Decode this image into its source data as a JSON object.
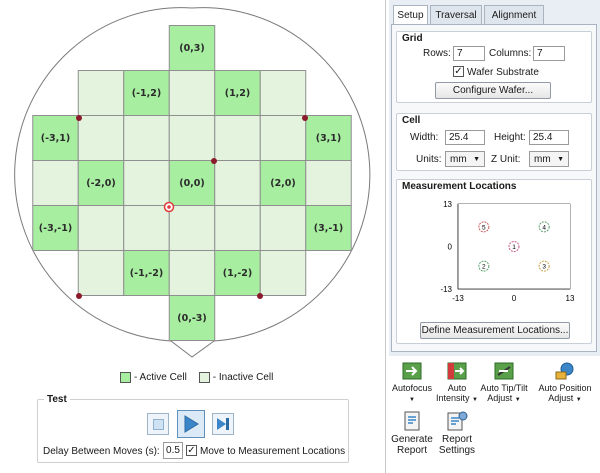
{
  "wafer": {
    "cells": [
      {
        "label": "(0,3)",
        "col": 0,
        "row": 3,
        "active": true
      },
      {
        "label": "(-1,2)",
        "col": -1,
        "row": 2,
        "active": true
      },
      {
        "label": "(1,2)",
        "col": 1,
        "row": 2,
        "active": true
      },
      {
        "label": "(-3,1)",
        "col": -3,
        "row": 1,
        "active": true
      },
      {
        "label": "(3,1)",
        "col": 3,
        "row": 1,
        "active": true
      },
      {
        "label": "(-2,0)",
        "col": -2,
        "row": 0,
        "active": true
      },
      {
        "label": "(0,0)",
        "col": 0,
        "row": 0,
        "active": true
      },
      {
        "label": "(2,0)",
        "col": 2,
        "row": 0,
        "active": true
      },
      {
        "label": "(-3,-1)",
        "col": -3,
        "row": -1,
        "active": true
      },
      {
        "label": "(3,-1)",
        "col": 3,
        "row": -1,
        "active": true
      },
      {
        "label": "(-1,-2)",
        "col": -1,
        "row": -2,
        "active": true
      },
      {
        "label": "(1,-2)",
        "col": 1,
        "row": -2,
        "active": true
      },
      {
        "label": "(0,-3)",
        "col": 0,
        "row": -3,
        "active": true
      }
    ],
    "colors": {
      "active": "#a7eea0",
      "inactive": "#e3f3dd",
      "line": "#8f8f8f",
      "marker": "#8b1a2b",
      "origin": "#e23a3a"
    }
  },
  "legend": {
    "active_label": "- Active Cell",
    "inactive_label": "- Inactive Cell"
  },
  "test": {
    "title": "Test",
    "delay_label": "Delay Between Moves (s):",
    "delay_value": "0.5",
    "move_checked": true,
    "move_label": "Move to Measurement Locations"
  },
  "tabs": [
    {
      "label": "Setup",
      "selected": true
    },
    {
      "label": "Traversal",
      "selected": false
    },
    {
      "label": "Alignment",
      "selected": false
    }
  ],
  "grid": {
    "title": "Grid",
    "rows_label": "Rows:",
    "rows_value": "7",
    "columns_label": "Columns:",
    "columns_value": "7",
    "wafer_substrate_label": "Wafer Substrate",
    "wafer_substrate_checked": true,
    "configure_button": "Configure Wafer..."
  },
  "cell": {
    "title": "Cell",
    "width_label": "Width:",
    "width_value": "25.4",
    "height_label": "Height:",
    "height_value": "25.4",
    "units_label": "Units:",
    "units_value": "mm",
    "zunit_label": "Z Unit:",
    "zunit_value": "mm"
  },
  "measurement": {
    "title": "Measurement Locations",
    "y_ticks": [
      "13",
      "0",
      "-13"
    ],
    "x_ticks": [
      "-13",
      "0",
      "13"
    ],
    "points": [
      {
        "id": "1",
        "x": 0,
        "y": 0
      },
      {
        "id": "2",
        "x": -7,
        "y": -6
      },
      {
        "id": "3",
        "x": 7,
        "y": -6
      },
      {
        "id": "4",
        "x": 7,
        "y": 6
      },
      {
        "id": "5",
        "x": -7,
        "y": 6
      }
    ],
    "define_button": "Define Measurement Locations..."
  },
  "toolbar": {
    "autofocus": "Autofocus",
    "auto_intensity": "Auto Intensity",
    "auto_tiptilt": "Auto Tip/Tilt Adjust",
    "auto_position": "Auto Position Adjust",
    "generate_report": "Generate Report",
    "report_settings": "Report Settings"
  }
}
